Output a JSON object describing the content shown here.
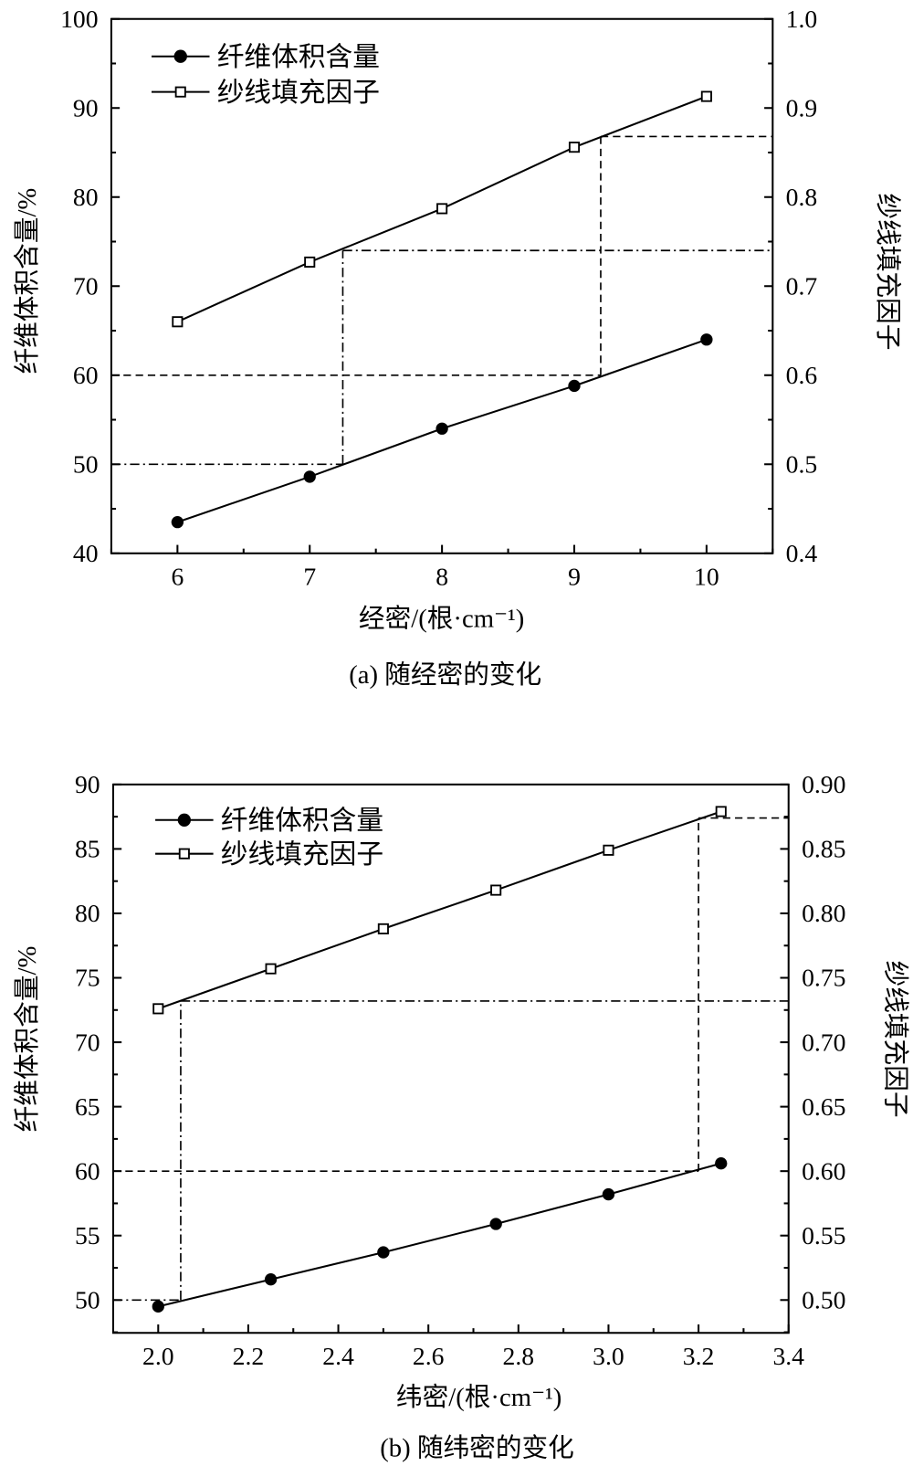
{
  "chart_data": [
    {
      "type": "line",
      "title": "",
      "caption": "(a) 随经密的变化",
      "xlabel": "经密/(根·cm⁻¹)",
      "ylabel": "纤维体积含量/%",
      "y2label": "纱线填充因子",
      "xlim": [
        5.5,
        10.5
      ],
      "ylim": [
        40,
        100
      ],
      "y2lim": [
        0.4,
        1.0
      ],
      "xticks": [
        6,
        7,
        8,
        9,
        10
      ],
      "xtick_labels": [
        "6",
        "7",
        "8",
        "9",
        "10"
      ],
      "xminor": 0.5,
      "yticks": [
        40,
        50,
        60,
        70,
        80,
        90,
        100
      ],
      "ytick_labels": [
        "40",
        "50",
        "60",
        "70",
        "80",
        "90",
        "100"
      ],
      "yminor": 5,
      "y2ticks": [
        0.4,
        0.5,
        0.6,
        0.7,
        0.8,
        0.9,
        1.0
      ],
      "y2tick_labels": [
        "0.4",
        "0.5",
        "0.6",
        "0.7",
        "0.8",
        "0.9",
        "1.0"
      ],
      "grid": false,
      "legend_position": "top-left",
      "series": [
        {
          "name": "纤维体积含量",
          "axis": "left",
          "marker": "filled-circle",
          "x": [
            6,
            7,
            8,
            9,
            10
          ],
          "values": [
            43.5,
            48.6,
            54.0,
            58.8,
            64.0
          ]
        },
        {
          "name": "纱线填充因子",
          "axis": "right",
          "marker": "open-square",
          "x": [
            6,
            7,
            8,
            9,
            10
          ],
          "values": [
            0.66,
            0.727,
            0.787,
            0.856,
            0.913
          ]
        }
      ],
      "reference_lines": [
        {
          "style": "dash-dot",
          "x": 7.25,
          "y_left": 50,
          "y_right": 0.74
        },
        {
          "style": "dashed",
          "x": 9.2,
          "y_left": 60,
          "y_right": 0.868
        }
      ]
    },
    {
      "type": "line",
      "title": "",
      "caption": "(b) 随纬密的变化",
      "xlabel": "纬密/(根·cm⁻¹)",
      "ylabel": "纤维体积含量/%",
      "y2label": "纱线填充因子",
      "xlim": [
        1.9,
        3.4
      ],
      "ylim": [
        47.45,
        90
      ],
      "y2lim": [
        0.4745,
        0.9
      ],
      "xticks": [
        2.0,
        2.2,
        2.4,
        2.6,
        2.8,
        3.0,
        3.2,
        3.4
      ],
      "xtick_labels": [
        "2.0",
        "2.2",
        "2.4",
        "2.6",
        "2.8",
        "3.0",
        "3.2",
        "3.4"
      ],
      "xminor": 0.1,
      "yticks": [
        50,
        55,
        60,
        65,
        70,
        75,
        80,
        85,
        90
      ],
      "ytick_labels": [
        "50",
        "55",
        "60",
        "65",
        "70",
        "75",
        "80",
        "85",
        "90"
      ],
      "yminor": 2.5,
      "y2ticks": [
        0.5,
        0.55,
        0.6,
        0.65,
        0.7,
        0.75,
        0.8,
        0.85,
        0.9
      ],
      "y2tick_labels": [
        "0.50",
        "0.55",
        "0.60",
        "0.65",
        "0.70",
        "0.75",
        "0.80",
        "0.85",
        "0.90"
      ],
      "grid": false,
      "legend_position": "top-left",
      "series": [
        {
          "name": "纤维体积含量",
          "axis": "left",
          "marker": "filled-circle",
          "x": [
            2.0,
            2.25,
            2.5,
            2.75,
            3.0,
            3.25
          ],
          "values": [
            49.5,
            51.6,
            53.7,
            55.9,
            58.2,
            60.6
          ]
        },
        {
          "name": "纱线填充因子",
          "axis": "right",
          "marker": "open-square",
          "x": [
            2.0,
            2.25,
            2.5,
            2.75,
            3.0,
            3.25
          ],
          "values": [
            0.726,
            0.757,
            0.788,
            0.818,
            0.849,
            0.879
          ]
        }
      ],
      "reference_lines": [
        {
          "style": "dash-dot",
          "x": 2.05,
          "y_left": 50,
          "y_right": 0.732
        },
        {
          "style": "dashed",
          "x": 3.2,
          "y_left": 60,
          "y_right": 0.874
        }
      ]
    }
  ]
}
